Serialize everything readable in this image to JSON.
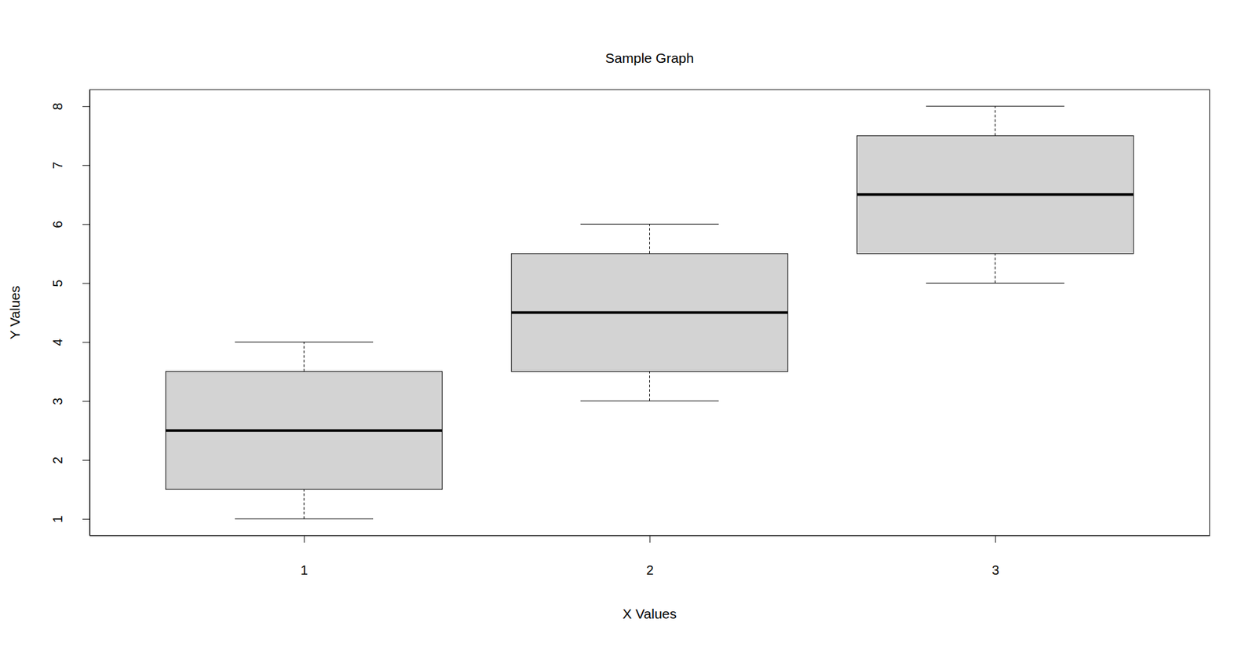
{
  "chart_data": {
    "type": "box",
    "title": "Sample Graph",
    "x_label": "X Values",
    "y_label": "Y Values",
    "categories": [
      "1",
      "2",
      "3"
    ],
    "min": [
      1,
      3,
      5
    ],
    "q1": [
      1.5,
      3.5,
      5.5
    ],
    "median": [
      2.5,
      4.5,
      6.5
    ],
    "q3": [
      3.5,
      5.5,
      7.5
    ],
    "max": [
      4,
      6,
      8
    ],
    "color": "#d3d3d3",
    "ylim": [
      0.72,
      8.28
    ],
    "yticks": [
      1,
      2,
      3,
      4,
      5,
      6,
      7,
      8
    ],
    "grid": false
  }
}
